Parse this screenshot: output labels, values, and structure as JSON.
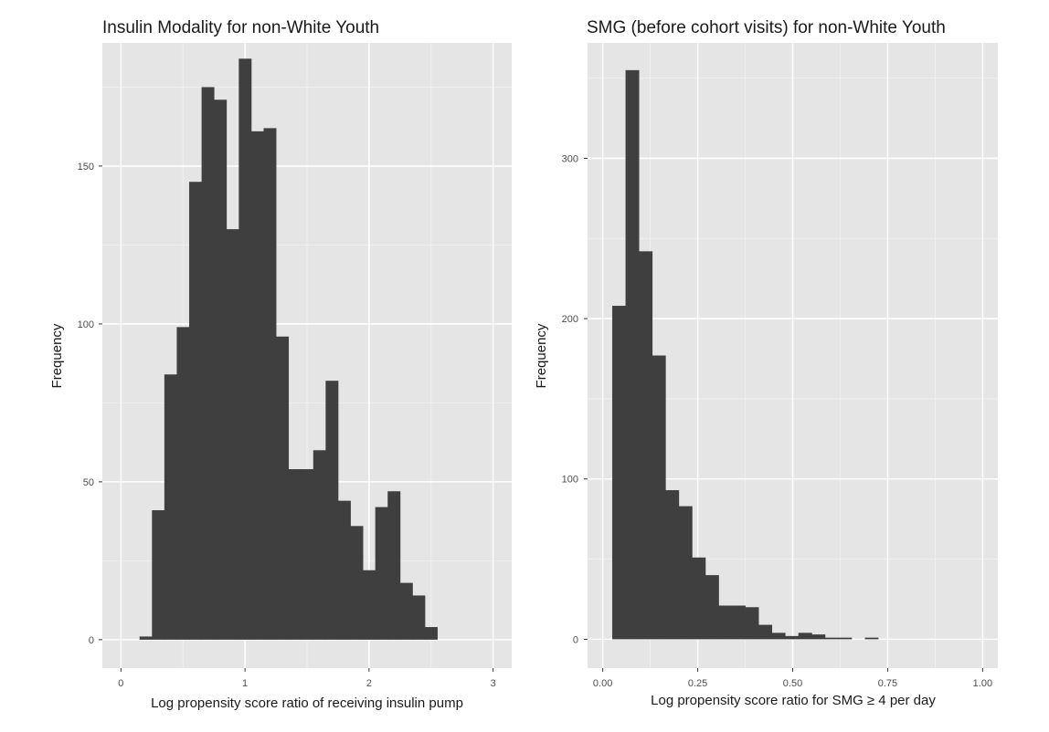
{
  "chart_data": [
    {
      "type": "bar",
      "title": "Insulin Modality for non-White Youth",
      "xlabel": "Log propensity score ratio of receiving insulin pump",
      "ylabel": "Frequency",
      "xlim": [
        -0.15,
        3.15
      ],
      "ylim": [
        -9,
        189
      ],
      "x_ticks": [
        0,
        1,
        2,
        3
      ],
      "x_tick_labels": [
        "0",
        "1",
        "2",
        "3"
      ],
      "y_ticks": [
        0,
        50,
        100,
        150
      ],
      "y_tick_labels": [
        "0",
        "50",
        "100",
        "150"
      ],
      "grid": true,
      "bin_start": 0.15,
      "bin_width": 0.1,
      "values": [
        1,
        41,
        84,
        99,
        145,
        175,
        171,
        130,
        184,
        161,
        162,
        96,
        54,
        54,
        60,
        82,
        44,
        36,
        22,
        42,
        47,
        18,
        14,
        4
      ]
    },
    {
      "type": "bar",
      "title": "SMG (before cohort visits) for non-White Youth",
      "xlabel": "Log propensity score ratio for SMG ≥ 4 per day",
      "ylabel": "Frequency",
      "xlim": [
        -0.04,
        1.04
      ],
      "ylim": [
        -18,
        372
      ],
      "x_ticks": [
        0,
        0.25,
        0.5,
        0.75,
        1.0
      ],
      "x_tick_labels": [
        "0.00",
        "0.25",
        "0.50",
        "0.75",
        "1.00"
      ],
      "y_ticks": [
        0,
        100,
        200,
        300
      ],
      "y_tick_labels": [
        "0",
        "100",
        "200",
        "300"
      ],
      "grid": true,
      "bin_start": 0.025,
      "bin_width": 0.035,
      "values": [
        208,
        355,
        242,
        177,
        93,
        83,
        51,
        40,
        21,
        21,
        20,
        9,
        4,
        2,
        4,
        3,
        1,
        1,
        0,
        1
      ]
    }
  ]
}
